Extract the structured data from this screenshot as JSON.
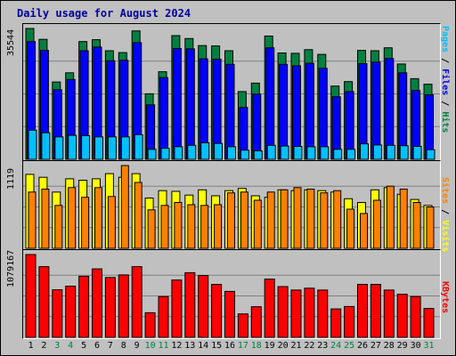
{
  "title": "Daily usage for August 2024",
  "colors": {
    "background": "#c0c0c0",
    "pages": "#00c0ff",
    "files": "#0000ff",
    "hits": "#008040",
    "sites": "#ff8000",
    "visits": "#ffff00",
    "kbytes": "#ff0000",
    "weekday_label": "#000000",
    "weekend_label": "#008040"
  },
  "chart_data": [
    {
      "type": "bar",
      "panel": "top",
      "y_max_label": "35544",
      "ylim": [
        0,
        35544
      ],
      "right_label": [
        "Pages",
        " / ",
        "Files",
        " / ",
        "Hits"
      ],
      "categories": [
        "1",
        "2",
        "3",
        "4",
        "5",
        "6",
        "7",
        "8",
        "9",
        "10",
        "11",
        "12",
        "13",
        "14",
        "15",
        "16",
        "17",
        "18",
        "19",
        "20",
        "21",
        "22",
        "23",
        "24",
        "25",
        "26",
        "27",
        "28",
        "29",
        "30",
        "31"
      ],
      "series": [
        {
          "name": "Hits",
          "values": [
            35544,
            32600,
            21000,
            23500,
            32000,
            32500,
            29500,
            29000,
            34900,
            17800,
            23800,
            33600,
            32800,
            30900,
            30800,
            29500,
            18400,
            20700,
            33500,
            28900,
            28800,
            29800,
            28500,
            19900,
            21100,
            29600,
            29500,
            30300,
            25900,
            21900,
            20400
          ]
        },
        {
          "name": "Files",
          "values": [
            32000,
            29600,
            18900,
            21700,
            29500,
            30500,
            26800,
            26900,
            31700,
            14800,
            22200,
            30100,
            30000,
            27300,
            27200,
            25800,
            14100,
            17700,
            30300,
            25800,
            25400,
            26100,
            24700,
            17000,
            18400,
            26000,
            26400,
            27400,
            23500,
            18700,
            17500
          ]
        },
        {
          "name": "Pages",
          "values": [
            7900,
            7200,
            6100,
            6500,
            6400,
            6100,
            6100,
            6100,
            6700,
            2700,
            3000,
            3400,
            3800,
            4500,
            4300,
            3400,
            2500,
            2300,
            3800,
            3600,
            3500,
            3400,
            3400,
            2700,
            2700,
            4200,
            3900,
            3800,
            3700,
            3500,
            2600
          ]
        }
      ]
    },
    {
      "type": "bar",
      "panel": "middle",
      "y_max_label": "1119",
      "ylim": [
        0,
        1119
      ],
      "right_label": [
        "Sites",
        " / ",
        "Visits"
      ],
      "categories": [
        "1",
        "2",
        "3",
        "4",
        "5",
        "6",
        "7",
        "8",
        "9",
        "10",
        "11",
        "12",
        "13",
        "14",
        "15",
        "16",
        "17",
        "18",
        "19",
        "20",
        "21",
        "22",
        "23",
        "24",
        "25",
        "26",
        "27",
        "28",
        "29",
        "30",
        "31"
      ],
      "series": [
        {
          "name": "Visits",
          "values": [
            1000,
            960,
            760,
            940,
            920,
            940,
            1010,
            960,
            1010,
            680,
            780,
            770,
            720,
            790,
            710,
            780,
            810,
            710,
            690,
            790,
            780,
            790,
            780,
            760,
            670,
            620,
            790,
            820,
            730,
            660,
            580
          ]
        },
        {
          "name": "Sites",
          "values": [
            760,
            800,
            580,
            820,
            690,
            820,
            700,
            1119,
            890,
            520,
            580,
            620,
            590,
            580,
            590,
            750,
            760,
            650,
            760,
            790,
            820,
            800,
            750,
            780,
            530,
            470,
            650,
            840,
            800,
            620,
            560
          ]
        }
      ]
    },
    {
      "type": "bar",
      "panel": "bottom",
      "y_max_label": "1079167",
      "ylim": [
        0,
        1079167
      ],
      "right_label": [
        "KBytes"
      ],
      "categories": [
        "1",
        "2",
        "3",
        "4",
        "5",
        "6",
        "7",
        "8",
        "9",
        "10",
        "11",
        "12",
        "13",
        "14",
        "15",
        "16",
        "17",
        "18",
        "19",
        "20",
        "21",
        "22",
        "23",
        "24",
        "25",
        "26",
        "27",
        "28",
        "29",
        "30",
        "31"
      ],
      "series": [
        {
          "name": "KBytes",
          "values": [
            1079167,
            921000,
            620000,
            667000,
            796000,
            892000,
            780000,
            813000,
            921000,
            320000,
            531000,
            747000,
            843000,
            805000,
            691000,
            599000,
            305000,
            399000,
            759000,
            661000,
            616000,
            641000,
            616000,
            370000,
            401000,
            691000,
            691000,
            616000,
            562000,
            531000,
            376000
          ]
        }
      ]
    }
  ],
  "day_labels": [
    {
      "text": "1",
      "weekend": false
    },
    {
      "text": "2",
      "weekend": false
    },
    {
      "text": "3",
      "weekend": true
    },
    {
      "text": "4",
      "weekend": true
    },
    {
      "text": "5",
      "weekend": false
    },
    {
      "text": "6",
      "weekend": false
    },
    {
      "text": "7",
      "weekend": false
    },
    {
      "text": "8",
      "weekend": false
    },
    {
      "text": "9",
      "weekend": false
    },
    {
      "text": "10",
      "weekend": true
    },
    {
      "text": "11",
      "weekend": true
    },
    {
      "text": "12",
      "weekend": false
    },
    {
      "text": "13",
      "weekend": false
    },
    {
      "text": "14",
      "weekend": false
    },
    {
      "text": "15",
      "weekend": false
    },
    {
      "text": "16",
      "weekend": false
    },
    {
      "text": "17",
      "weekend": true
    },
    {
      "text": "18",
      "weekend": true
    },
    {
      "text": "19",
      "weekend": false
    },
    {
      "text": "20",
      "weekend": false
    },
    {
      "text": "21",
      "weekend": false
    },
    {
      "text": "22",
      "weekend": false
    },
    {
      "text": "23",
      "weekend": false
    },
    {
      "text": "24",
      "weekend": true
    },
    {
      "text": "25",
      "weekend": true
    },
    {
      "text": "26",
      "weekend": false
    },
    {
      "text": "27",
      "weekend": false
    },
    {
      "text": "28",
      "weekend": false
    },
    {
      "text": "29",
      "weekend": false
    },
    {
      "text": "30",
      "weekend": false
    },
    {
      "text": "31",
      "weekend": true
    }
  ]
}
